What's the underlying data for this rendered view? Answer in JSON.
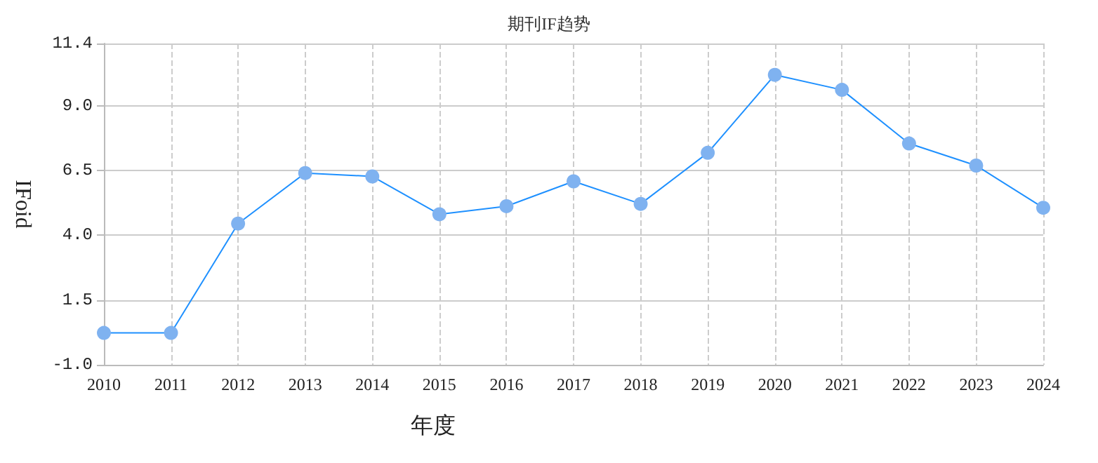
{
  "chart_data": {
    "type": "line",
    "title": "期刊IF趋势",
    "xlabel": "年度",
    "ylabel": "IFoid",
    "categories": [
      "2010",
      "2011",
      "2012",
      "2013",
      "2014",
      "2015",
      "2016",
      "2017",
      "2018",
      "2019",
      "2020",
      "2021",
      "2022",
      "2023",
      "2024"
    ],
    "series": [
      {
        "color": "#1e90ff",
        "values": [
          0.23,
          0.23,
          4.45,
          6.4,
          6.27,
          4.81,
          5.12,
          6.08,
          5.21,
          7.18,
          10.19,
          9.61,
          7.54,
          6.69,
          5.06
        ]
      }
    ],
    "ylim": [
      -1.0,
      11.4
    ],
    "yticks": [
      {
        "value": -1,
        "label": "-1.0"
      },
      1.5,
      {
        "value": 4,
        "label": "4.0"
      },
      6.5,
      {
        "value": 9,
        "label": "9.0"
      },
      11.4
    ],
    "grid": true,
    "marker": "circle",
    "line_style": "solid"
  }
}
